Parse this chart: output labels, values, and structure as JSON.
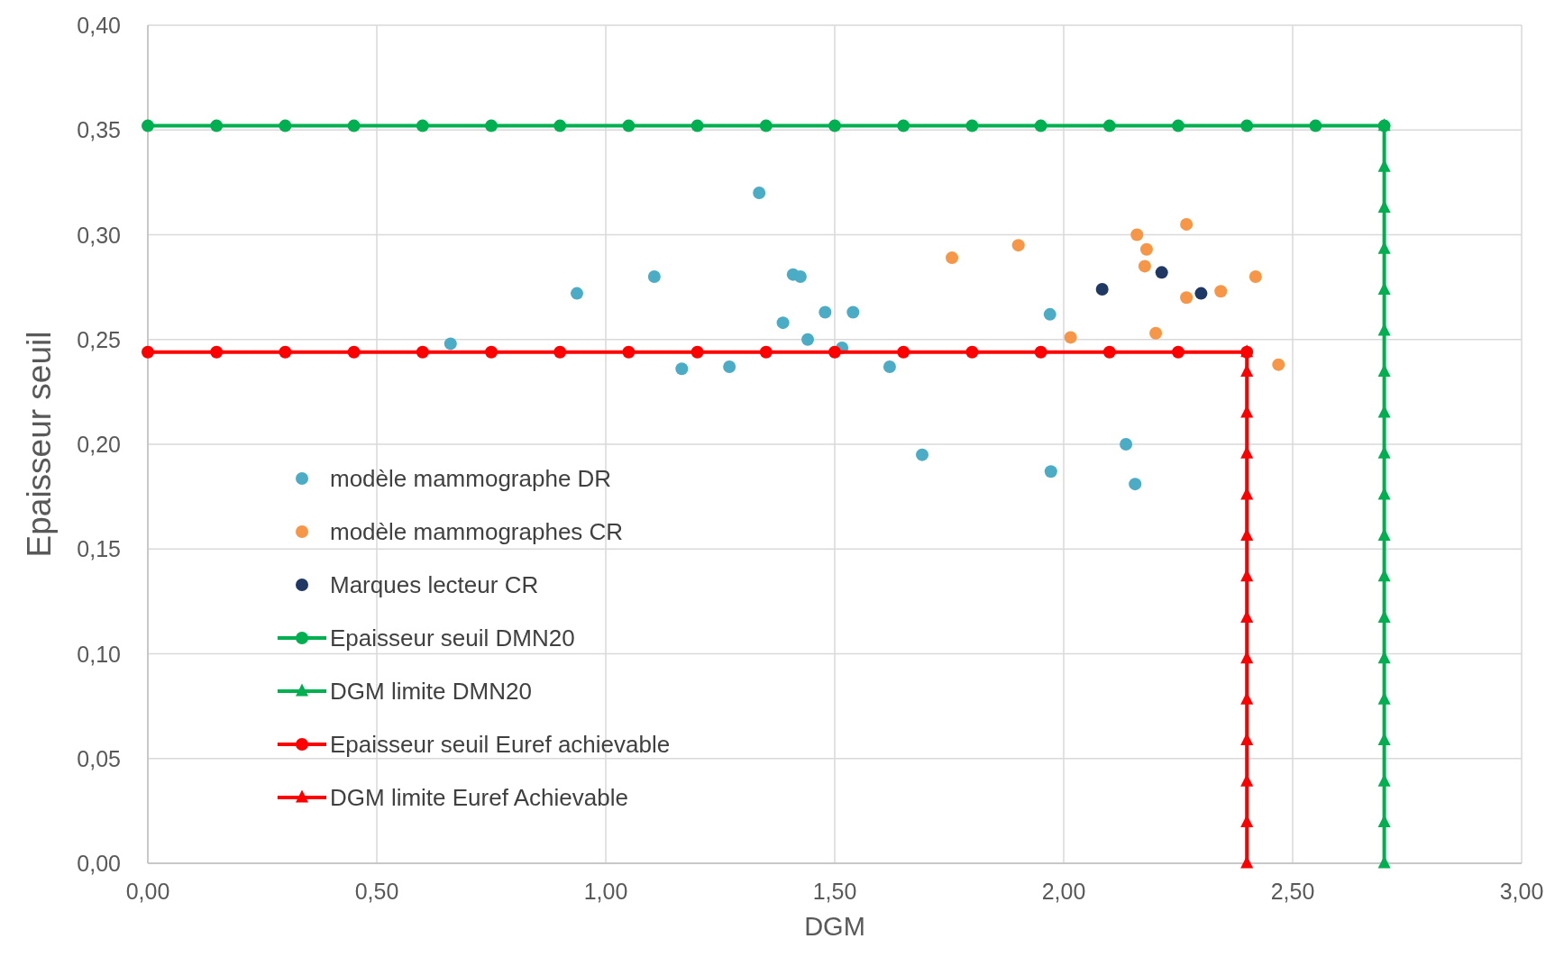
{
  "chart_data": {
    "type": "scatter",
    "xlabel": "DGM",
    "ylabel": "Epaisseur seuil",
    "xlim": [
      0,
      3
    ],
    "ylim": [
      0,
      0.4
    ],
    "xticks": [
      {
        "value": 0,
        "label": "0,00"
      },
      {
        "value": 0.5,
        "label": "0,50"
      },
      {
        "value": 1,
        "label": "1,00"
      },
      {
        "value": 1.5,
        "label": "1,50"
      },
      {
        "value": 2,
        "label": "2,00"
      },
      {
        "value": 2.5,
        "label": "2,50"
      },
      {
        "value": 3,
        "label": "3,00"
      }
    ],
    "yticks": [
      {
        "value": 0,
        "label": "0,00"
      },
      {
        "value": 0.05,
        "label": "0,05"
      },
      {
        "value": 0.1,
        "label": "0,10"
      },
      {
        "value": 0.15,
        "label": "0,15"
      },
      {
        "value": 0.2,
        "label": "0,20"
      },
      {
        "value": 0.25,
        "label": "0,25"
      },
      {
        "value": 0.3,
        "label": "0,30"
      },
      {
        "value": 0.35,
        "label": "0,35"
      },
      {
        "value": 0.4,
        "label": "0,40"
      }
    ],
    "grid": true,
    "legend": "left",
    "series": [
      {
        "name": "modèle mammographe DR",
        "marker": "circle",
        "color": "#4bacc6",
        "x": [
          0.661,
          0.937,
          1.106,
          1.166,
          1.27,
          1.335,
          1.387,
          1.409,
          1.425,
          1.441,
          1.479,
          1.516,
          1.54,
          1.62,
          1.691,
          1.97,
          1.972,
          2.136,
          2.156
        ],
        "values": [
          0.248,
          0.272,
          0.28,
          0.236,
          0.237,
          0.32,
          0.258,
          0.281,
          0.28,
          0.25,
          0.263,
          0.246,
          0.263,
          0.237,
          0.195,
          0.262,
          0.187,
          0.2,
          0.181
        ]
      },
      {
        "name": "modèle mammographes CR",
        "marker": "circle",
        "color": "#f79646",
        "x": [
          1.756,
          1.901,
          2.015,
          2.16,
          2.181,
          2.177,
          2.201,
          2.268,
          2.268,
          2.343,
          2.419,
          2.469
        ],
        "values": [
          0.289,
          0.295,
          0.251,
          0.3,
          0.293,
          0.285,
          0.253,
          0.305,
          0.27,
          0.273,
          0.28,
          0.238
        ]
      },
      {
        "name": "Marques lecteur CR",
        "marker": "circle",
        "color": "#203864",
        "x": [
          2.084,
          2.214,
          2.3
        ],
        "values": [
          0.274,
          0.282,
          0.272
        ]
      },
      {
        "name": "Epaisseur seuil DMN20",
        "type": "line",
        "marker": "circle",
        "line_style": "solid",
        "color": "#00b050",
        "x": [
          0,
          0.15,
          0.3,
          0.45,
          0.6,
          0.75,
          0.9,
          1.05,
          1.2,
          1.35,
          1.5,
          1.65,
          1.8,
          1.95,
          2.1,
          2.25,
          2.4,
          2.55,
          2.7
        ],
        "values": [
          0.352,
          0.352,
          0.352,
          0.352,
          0.352,
          0.352,
          0.352,
          0.352,
          0.352,
          0.352,
          0.352,
          0.352,
          0.352,
          0.352,
          0.352,
          0.352,
          0.352,
          0.352,
          0.352
        ]
      },
      {
        "name": "DGM limite DMN20",
        "type": "line",
        "marker": "triangle",
        "line_style": "solid",
        "color": "#00b050",
        "x": [
          2.7,
          2.7,
          2.7,
          2.7,
          2.7,
          2.7,
          2.7,
          2.7,
          2.7,
          2.7,
          2.7,
          2.7,
          2.7,
          2.7,
          2.7,
          2.7,
          2.7,
          2.7,
          2.7
        ],
        "values": [
          0,
          0.0196,
          0.0391,
          0.0587,
          0.0782,
          0.0978,
          0.1173,
          0.1369,
          0.1564,
          0.176,
          0.1956,
          0.2151,
          0.2347,
          0.2542,
          0.2738,
          0.2933,
          0.3129,
          0.3324,
          0.352
        ]
      },
      {
        "name": "Epaisseur seuil Euref achievable",
        "type": "line",
        "marker": "circle",
        "line_style": "solid",
        "color": "#ff0000",
        "x": [
          0,
          0.15,
          0.3,
          0.45,
          0.6,
          0.75,
          0.9,
          1.05,
          1.2,
          1.35,
          1.5,
          1.65,
          1.8,
          1.95,
          2.1,
          2.25,
          2.4
        ],
        "values": [
          0.244,
          0.244,
          0.244,
          0.244,
          0.244,
          0.244,
          0.244,
          0.244,
          0.244,
          0.244,
          0.244,
          0.244,
          0.244,
          0.244,
          0.244,
          0.244,
          0.244
        ]
      },
      {
        "name": "DGM limite Euref Achievable",
        "type": "line",
        "marker": "triangle",
        "line_style": "solid",
        "color": "#ff0000",
        "x": [
          2.4,
          2.4,
          2.4,
          2.4,
          2.4,
          2.4,
          2.4,
          2.4,
          2.4,
          2.4,
          2.4,
          2.4,
          2.4,
          2.4
        ],
        "values": [
          0,
          0.0196,
          0.0391,
          0.0587,
          0.0782,
          0.0978,
          0.1173,
          0.1369,
          0.1564,
          0.176,
          0.1956,
          0.2151,
          0.2347,
          0.244
        ]
      }
    ]
  }
}
